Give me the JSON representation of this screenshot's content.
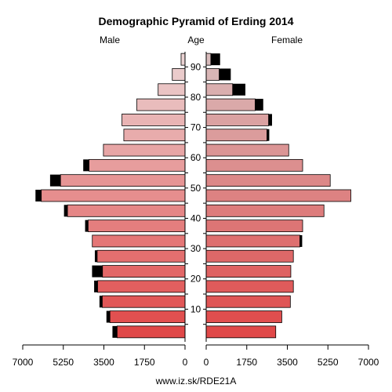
{
  "chart_data": {
    "type": "bar",
    "title": "Demographic Pyramid of Erding 2014",
    "male_label": "Male",
    "female_label": "Female",
    "age_label": "Age",
    "footer": "www.iz.sk/RDE21A",
    "x_ticks_male": [
      "7000",
      "5250",
      "3500",
      "1750",
      "0"
    ],
    "x_ticks_female": [
      "0",
      "1750",
      "3500",
      "5250",
      "7000"
    ],
    "x_tick_values": [
      0,
      1750,
      3500,
      5250,
      7000
    ],
    "xlim": [
      0,
      7000
    ],
    "age_ticks": [
      "10",
      "20",
      "30",
      "40",
      "50",
      "60",
      "70",
      "80",
      "90"
    ],
    "age_tick_values": [
      10,
      20,
      30,
      40,
      50,
      60,
      70,
      80,
      90
    ],
    "age_groups": [
      "0-4",
      "5-9",
      "10-14",
      "15-19",
      "20-24",
      "25-29",
      "30-34",
      "35-39",
      "40-44",
      "45-49",
      "50-54",
      "55-59",
      "60-64",
      "65-69",
      "70-74",
      "75-79",
      "80-84",
      "85-89",
      "90+"
    ],
    "series": [
      {
        "name": "Male",
        "total": [
          3130,
          3390,
          3690,
          3920,
          4010,
          3890,
          4000,
          4310,
          5220,
          6450,
          5820,
          4390,
          3520,
          2640,
          2720,
          2080,
          1160,
          550,
          170
        ],
        "foreign": [
          200,
          150,
          120,
          150,
          450,
          100,
          0,
          130,
          150,
          250,
          450,
          250,
          0,
          0,
          0,
          0,
          0,
          0,
          0
        ]
      },
      {
        "name": "Female",
        "total": [
          3000,
          3260,
          3630,
          3760,
          3650,
          3760,
          4140,
          4160,
          5080,
          6240,
          5350,
          4160,
          3560,
          2720,
          2840,
          2460,
          1690,
          1060,
          600
        ],
        "foreign": [
          0,
          0,
          0,
          0,
          0,
          0,
          100,
          0,
          0,
          0,
          0,
          0,
          0,
          100,
          150,
          350,
          550,
          500,
          400
        ]
      }
    ],
    "colors": {
      "male_light": "#ebd3d3",
      "male_dark": "#e04848",
      "female_light": "#d9bcbc",
      "female_dark": "#e04848",
      "foreign": "#000000"
    }
  }
}
